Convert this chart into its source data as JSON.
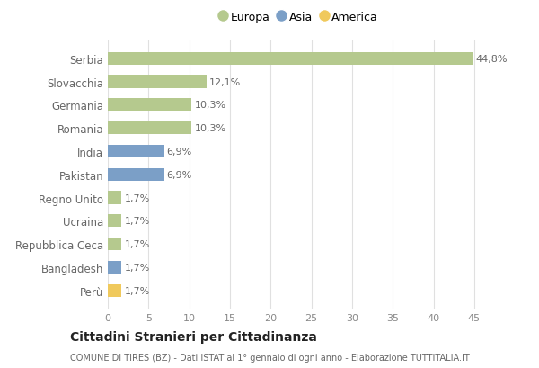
{
  "countries": [
    "Serbia",
    "Slovacchia",
    "Germania",
    "Romania",
    "India",
    "Pakistan",
    "Regno Unito",
    "Ucraina",
    "Repubblica Ceca",
    "Bangladesh",
    "Perù"
  ],
  "values": [
    44.8,
    12.1,
    10.3,
    10.3,
    6.9,
    6.9,
    1.7,
    1.7,
    1.7,
    1.7,
    1.7
  ],
  "labels": [
    "44,8%",
    "12,1%",
    "10,3%",
    "10,3%",
    "6,9%",
    "6,9%",
    "1,7%",
    "1,7%",
    "1,7%",
    "1,7%",
    "1,7%"
  ],
  "continents": [
    "Europa",
    "Europa",
    "Europa",
    "Europa",
    "Asia",
    "Asia",
    "Europa",
    "Europa",
    "Europa",
    "Asia",
    "America"
  ],
  "colors": {
    "Europa": "#b5c98e",
    "Asia": "#7b9fc7",
    "America": "#f0c95c"
  },
  "legend_labels": [
    "Europa",
    "Asia",
    "America"
  ],
  "xlim": [
    0,
    47
  ],
  "xticks": [
    0,
    5,
    10,
    15,
    20,
    25,
    30,
    35,
    40,
    45
  ],
  "title": "Cittadini Stranieri per Cittadinanza",
  "subtitle": "COMUNE DI TIRES (BZ) - Dati ISTAT al 1° gennaio di ogni anno - Elaborazione TUTTITALIA.IT",
  "background_color": "#ffffff",
  "grid_color": "#e0e0e0",
  "bar_height": 0.55
}
